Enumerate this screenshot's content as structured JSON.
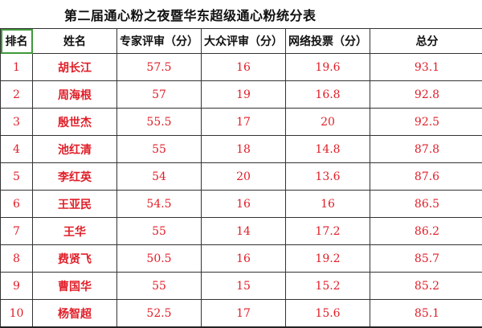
{
  "title": "第二届通心粉之夜暨华东超级通心粉统分表",
  "headers": [
    "排名",
    "姓名",
    "专家评审（分）",
    "大众评审（分）",
    "网络投票（分）",
    "总分"
  ],
  "colors": {
    "value_text": "#e01e28",
    "selected_cell_border": "#3e9a3a"
  },
  "rows": [
    [
      "1",
      "胡长江",
      "57.5",
      "16",
      "19.6",
      "93.1"
    ],
    [
      "2",
      "周海根",
      "57",
      "19",
      "16.8",
      "92.8"
    ],
    [
      "3",
      "殷世杰",
      "55.5",
      "17",
      "20",
      "92.5"
    ],
    [
      "4",
      "池红清",
      "55",
      "18",
      "14.8",
      "87.8"
    ],
    [
      "5",
      "李红英",
      "54",
      "20",
      "13.6",
      "87.6"
    ],
    [
      "6",
      "王亚民",
      "54.5",
      "16",
      "16",
      "86.5"
    ],
    [
      "7",
      "王华",
      "55",
      "14",
      "17.2",
      "86.2"
    ],
    [
      "8",
      "费贤飞",
      "50.5",
      "16",
      "19.2",
      "85.7"
    ],
    [
      "9",
      "曹国华",
      "55",
      "15",
      "15.2",
      "85.2"
    ],
    [
      "10",
      "杨智超",
      "52.5",
      "17",
      "15.6",
      "85.1"
    ]
  ]
}
